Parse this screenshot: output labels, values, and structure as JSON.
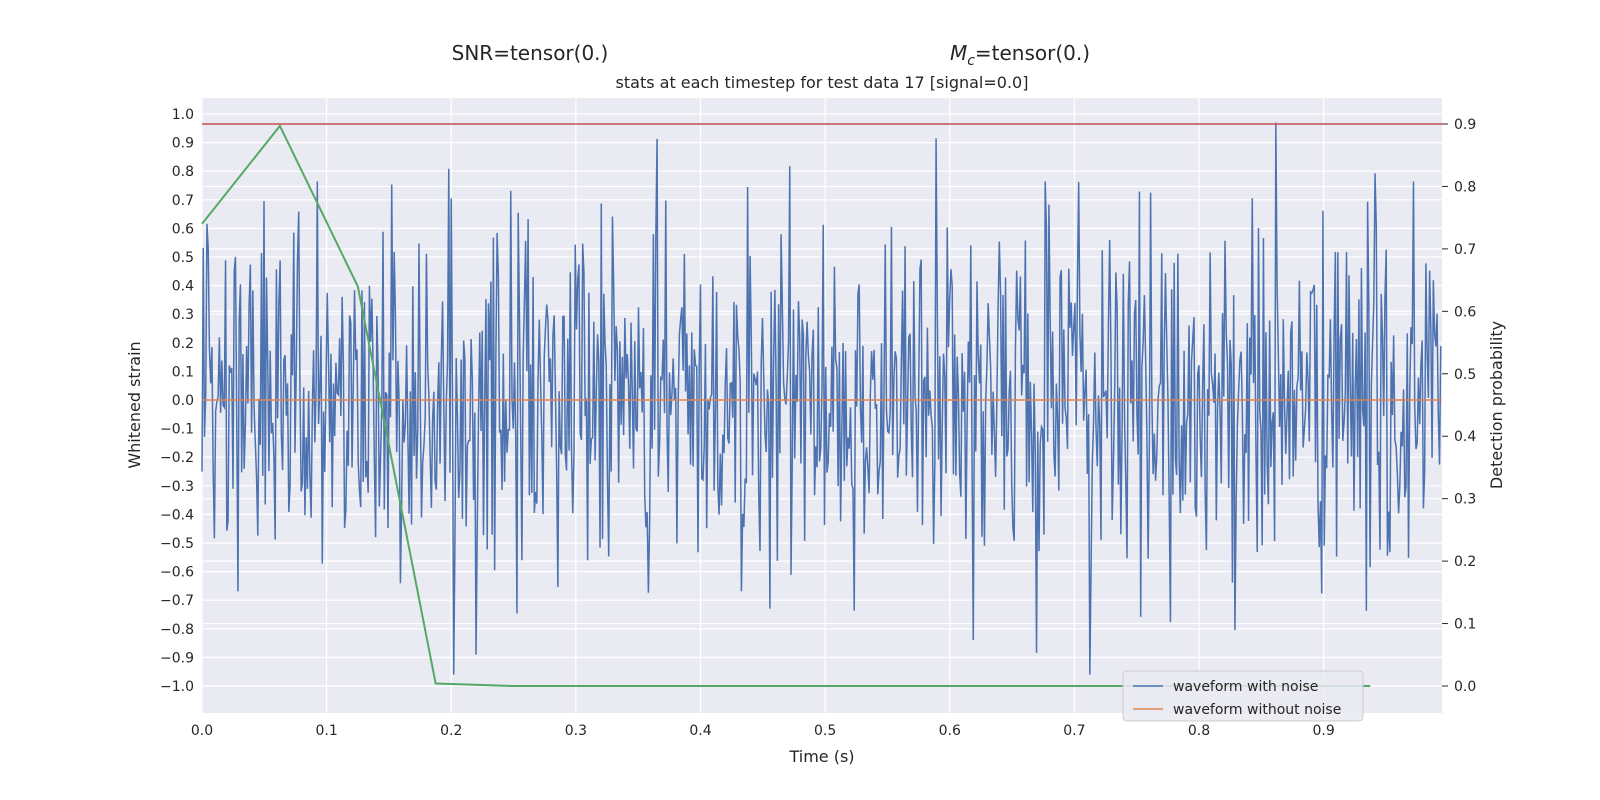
{
  "chart_data": {
    "type": "line",
    "header_left": "SNR=tensor(0.)",
    "header_right_symbol": "M",
    "header_right_sub": "c",
    "header_right_rest": "=tensor(0.)",
    "title": "stats at each timestep for test data 17 [signal=0.0]",
    "xlabel": "Time (s)",
    "ylabel_left": "Whitened strain",
    "ylabel_right": "Detection probability",
    "xlim": [
      0.0,
      1.0
    ],
    "ylim_left": [
      -1.0,
      1.0
    ],
    "ylim_right": [
      0.0,
      0.9
    ],
    "x_ticks": [
      "0.0",
      "0.1",
      "0.2",
      "0.3",
      "0.4",
      "0.5",
      "0.6",
      "0.7",
      "0.8",
      "0.9"
    ],
    "y_left_ticks": [
      "−1.0",
      "−0.9",
      "−0.8",
      "−0.7",
      "−0.6",
      "−0.5",
      "−0.4",
      "−0.3",
      "−0.2",
      "−0.1",
      "0.0",
      "0.1",
      "0.2",
      "0.3",
      "0.4",
      "0.5",
      "0.6",
      "0.7",
      "0.8",
      "0.9",
      "1.0"
    ],
    "y_right_ticks": [
      "0.0",
      "0.1",
      "0.2",
      "0.3",
      "0.4",
      "0.5",
      "0.6",
      "0.7",
      "0.8",
      "0.9"
    ],
    "grid": true,
    "legend_position": "lower-right",
    "series": [
      {
        "name": "waveform with noise",
        "color": "#4c72b0",
        "axis": "left",
        "note": "dense random noise roughly within ±1.0 of amplitude across the full time range"
      },
      {
        "name": "waveform without noise",
        "color": "#dd8452",
        "axis": "left",
        "x": [
          0.0,
          1.0
        ],
        "y": [
          0.0,
          0.0
        ]
      },
      {
        "color": "#55a868",
        "axis": "right",
        "x": [
          0.0,
          0.0625,
          0.125,
          0.1875,
          0.25,
          0.3125,
          0.375,
          0.4375,
          0.5,
          0.5625,
          0.625,
          0.6875,
          0.75,
          0.8125,
          0.875,
          0.9375
        ],
        "y": [
          0.74,
          0.897,
          0.64,
          0.004,
          0.0,
          0.0,
          0.0,
          0.0,
          0.0,
          0.0,
          0.0,
          0.0,
          0.0,
          0.0,
          0.0,
          0.0
        ]
      },
      {
        "color": "#c44e52",
        "axis": "right",
        "x": [
          0.0,
          1.0
        ],
        "y": [
          0.9,
          0.9
        ]
      }
    ]
  }
}
